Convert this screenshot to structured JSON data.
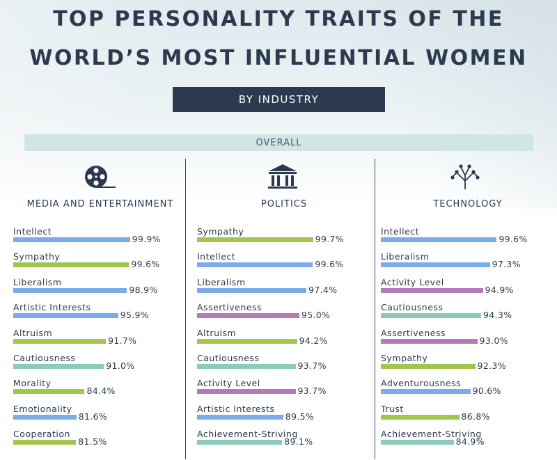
{
  "title_line1": "TOP PERSONALITY TRAITS OF THE",
  "title_line2": "WORLD’S MOST INFLUENTIAL WOMEN",
  "subtitle": "BY INDUSTRY",
  "overall_label": "OVERALL",
  "colors": {
    "blue": "#7aacec",
    "green": "#a0c64c",
    "purple": "#b57bb6",
    "teal": "#8bcbb7",
    "dark": "#2c3a4f"
  },
  "chart_data": [
    {
      "type": "bar",
      "title": "MEDIA AND ENTERTAINMENT",
      "icon": "film-reel-icon",
      "categories": [
        "Intellect",
        "Sympathy",
        "Liberalism",
        "Artistic Interests",
        "Altruism",
        "Cautiousness",
        "Morality",
        "Emotionality",
        "Cooperation"
      ],
      "values": [
        99.9,
        99.6,
        98.9,
        95.9,
        91.7,
        91.0,
        84.4,
        81.6,
        81.5
      ],
      "labels": [
        "99.9%",
        "99.6%",
        "98.9%",
        "95.9%",
        "91.7%",
        "91.0%",
        "84.4%",
        "81.6%",
        "81.5%"
      ],
      "colors": [
        "blue",
        "green",
        "blue",
        "blue",
        "green",
        "teal",
        "green",
        "blue",
        "green"
      ]
    },
    {
      "type": "bar",
      "title": "POLITICS",
      "icon": "capitol-building-icon",
      "categories": [
        "Sympathy",
        "Intellect",
        "Liberalism",
        "Assertiveness",
        "Altruism",
        "Cautiousness",
        "Activity Level",
        "Artistic Interests",
        "Achievement-Striving"
      ],
      "values": [
        99.7,
        99.6,
        97.4,
        95.0,
        94.2,
        93.7,
        93.7,
        89.5,
        89.1
      ],
      "labels": [
        "99.7%",
        "99.6%",
        "97.4%",
        "95.0%",
        "94.2%",
        "93.7%",
        "93.7%",
        "89.5%",
        "89.1%"
      ],
      "colors": [
        "green",
        "blue",
        "blue",
        "purple",
        "green",
        "teal",
        "purple",
        "blue",
        "teal"
      ]
    },
    {
      "type": "bar",
      "title": "TECHNOLOGY",
      "icon": "network-tree-icon",
      "categories": [
        "Intellect",
        "Liberalism",
        "Activity Level",
        "Cautiousness",
        "Assertiveness",
        "Sympathy",
        "Adventurousness",
        "Trust",
        "Achievement-Striving"
      ],
      "values": [
        99.6,
        97.3,
        94.9,
        94.3,
        93.0,
        92.3,
        90.6,
        86.8,
        84.9
      ],
      "labels": [
        "99.6%",
        "97.3%",
        "94.9%",
        "94.3%",
        "93.0%",
        "92.3%",
        "90.6%",
        "86.8%",
        "84.9%"
      ],
      "colors": [
        "blue",
        "blue",
        "purple",
        "teal",
        "purple",
        "green",
        "blue",
        "green",
        "teal"
      ]
    }
  ]
}
